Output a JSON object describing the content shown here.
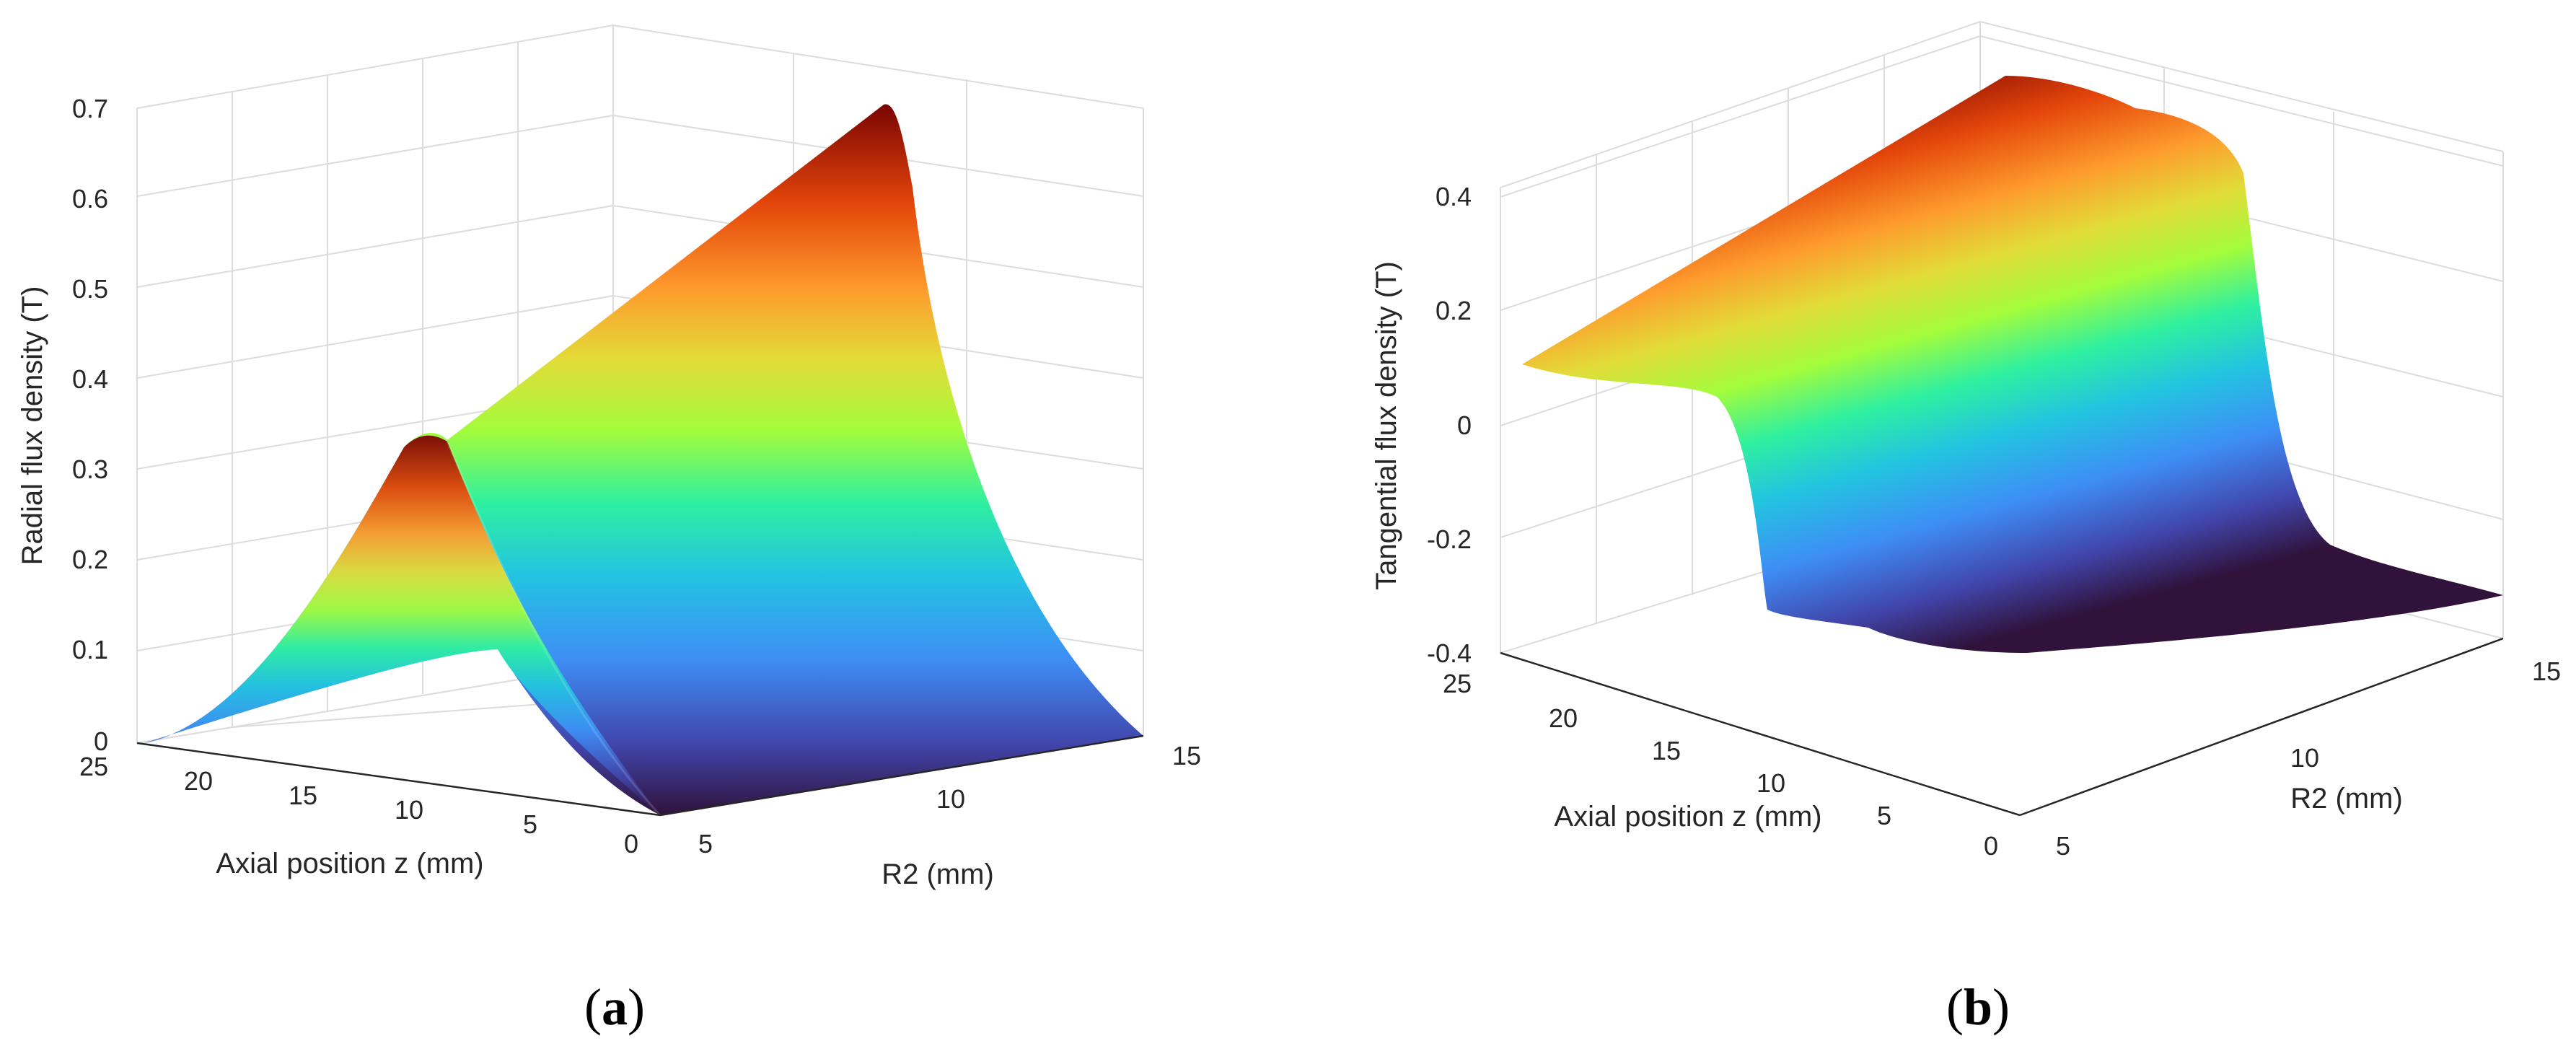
{
  "panels": [
    {
      "label_open": "(",
      "label_letter": "a",
      "label_close": ")"
    },
    {
      "label_open": "(",
      "label_letter": "b",
      "label_close": ")"
    }
  ],
  "chart_data": [
    {
      "type": "surface",
      "title": "",
      "xlabel": "Axial position z (mm)",
      "ylabel": "R2 (mm)",
      "zlabel": "Radial flux density (T)",
      "xlim": [
        0,
        25
      ],
      "ylim": [
        5,
        15
      ],
      "zlim": [
        0,
        0.7
      ],
      "x_ticks": [
        "0",
        "5",
        "10",
        "15",
        "20",
        "25"
      ],
      "y_ticks": [
        "5",
        "10",
        "15"
      ],
      "z_ticks": [
        "0",
        "0.1",
        "0.2",
        "0.3",
        "0.4",
        "0.5",
        "0.6",
        "0.7"
      ],
      "grid": true,
      "colormap": "turbo",
      "z_at_R2": {
        "R2": [
          5,
          10,
          15
        ],
        "peak_Bz": [
          0.34,
          0.53,
          0.7
        ]
      },
      "peak_z": 0,
      "edge_z_at_R2_15": [
        0,
        5,
        10,
        15,
        20,
        25
      ],
      "edge_Bz_at_R2_15": [
        0.7,
        0.5,
        0.16,
        0.04,
        0.01,
        0.0
      ]
    },
    {
      "type": "surface",
      "title": "",
      "xlabel": "Axial position z (mm)",
      "ylabel": "R2 (mm)",
      "zlabel": "Tangential flux density (T)",
      "xlim": [
        0,
        25
      ],
      "ylim": [
        5,
        15
      ],
      "zlim": [
        -0.4,
        0.4
      ],
      "x_ticks": [
        "0",
        "5",
        "10",
        "15",
        "20",
        "25"
      ],
      "y_ticks": [
        "5",
        "10",
        "15"
      ],
      "z_ticks": [
        "-0.4",
        "-0.2",
        "0",
        "0.2",
        "0.4"
      ],
      "grid": true,
      "colormap": "turbo",
      "z_profile_at_R2_5": {
        "z": [
          0,
          5,
          10,
          15,
          20,
          25
        ],
        "Bt": [
          -0.38,
          -0.37,
          -0.3,
          0.05,
          0.08,
          0.1
        ]
      },
      "z_profile_at_R2_15": {
        "z": [
          0,
          5,
          10,
          15,
          20,
          25
        ],
        "Bt": [
          -0.33,
          -0.32,
          -0.15,
          0.38,
          0.42,
          0.43
        ]
      }
    }
  ]
}
